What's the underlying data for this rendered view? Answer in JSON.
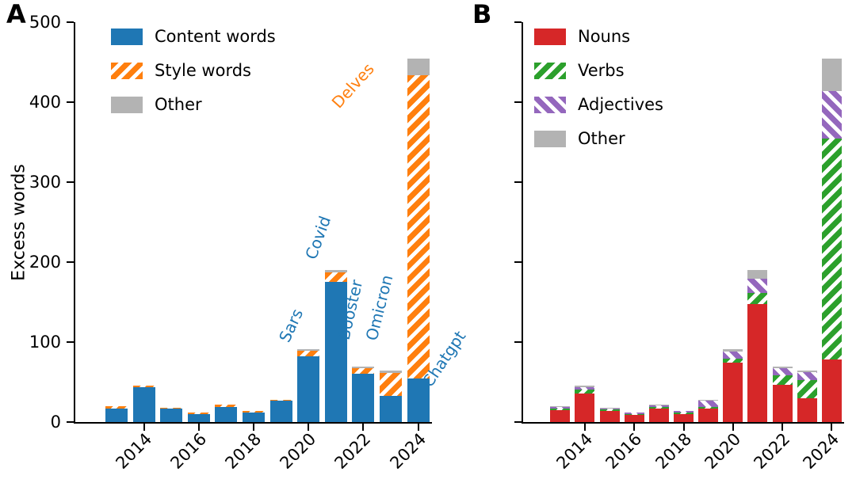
{
  "chart_data": [
    {
      "panel_label": "A",
      "type": "bar",
      "stacked": true,
      "ylabel": "Excess words",
      "ylim": [
        0,
        500
      ],
      "yticks": [
        0,
        100,
        200,
        300,
        400,
        500
      ],
      "show_ytick_labels": true,
      "xrange": [
        2012,
        2025
      ],
      "years": [
        2013,
        2014,
        2015,
        2016,
        2017,
        2018,
        2019,
        2020,
        2021,
        2022,
        2023,
        2024
      ],
      "xticks": [
        2014,
        2016,
        2018,
        2020,
        2022,
        2024
      ],
      "grid": false,
      "legend_position": "upper-left",
      "series": [
        {
          "name": "Content words",
          "color": "#1f77b4",
          "hatch": null,
          "values": [
            17,
            44,
            17,
            10,
            19,
            12,
            27,
            82,
            175,
            60,
            33,
            54
          ]
        },
        {
          "name": "Style words",
          "color": "#ff7f0e",
          "hatch": "/",
          "values": [
            3,
            2,
            1,
            2,
            3,
            2,
            1,
            7,
            12,
            7,
            28,
            380
          ]
        },
        {
          "name": "Other",
          "color": "#b3b3b3",
          "hatch": null,
          "values": [
            0,
            0,
            0,
            0,
            0,
            0,
            0,
            2,
            3,
            2,
            3,
            20
          ]
        }
      ],
      "annotations": [
        {
          "text": "Sars",
          "year": 2019.35,
          "value": 97,
          "color": "#1f77b4",
          "rotation": -65
        },
        {
          "text": "Covid",
          "year": 2020.35,
          "value": 201,
          "color": "#1f77b4",
          "rotation": -70
        },
        {
          "text": "Booster",
          "year": 2021.55,
          "value": 101,
          "color": "#1f77b4",
          "rotation": -77
        },
        {
          "text": "Omicron",
          "year": 2022.57,
          "value": 100,
          "color": "#1f77b4",
          "rotation": -76
        },
        {
          "text": "Delves",
          "year": 2021.18,
          "value": 389,
          "color": "#ff7f0e",
          "rotation": -48
        },
        {
          "text": "Chatgpt",
          "year": 2024.53,
          "value": 41,
          "color": "#1f77b4",
          "rotation": -56
        }
      ]
    },
    {
      "panel_label": "B",
      "type": "bar",
      "stacked": true,
      "ylabel": "",
      "ylim": [
        0,
        500
      ],
      "yticks": [
        0,
        100,
        200,
        300,
        400,
        500
      ],
      "show_ytick_labels": false,
      "xrange": [
        2012,
        2025
      ],
      "years": [
        2013,
        2014,
        2015,
        2016,
        2017,
        2018,
        2019,
        2020,
        2021,
        2022,
        2023,
        2024
      ],
      "xticks": [
        2014,
        2016,
        2018,
        2020,
        2022,
        2024
      ],
      "grid": false,
      "legend_position": "upper-left",
      "series": [
        {
          "name": "Nouns",
          "color": "#d62728",
          "hatch": null,
          "values": [
            15,
            36,
            14,
            9,
            17,
            10,
            17,
            74,
            148,
            47,
            30,
            78
          ]
        },
        {
          "name": "Verbs",
          "color": "#2ca02c",
          "hatch": "/",
          "values": [
            2,
            5,
            2,
            1,
            2,
            2,
            2,
            5,
            13,
            11,
            22,
            276
          ]
        },
        {
          "name": "Adjectives",
          "color": "#9467bd",
          "hatch": "\\",
          "values": [
            2,
            3,
            1,
            2,
            2,
            2,
            8,
            9,
            18,
            9,
            10,
            60
          ]
        },
        {
          "name": "Other",
          "color": "#b3b3b3",
          "hatch": null,
          "values": [
            1,
            2,
            1,
            0,
            1,
            0,
            1,
            3,
            11,
            2,
            2,
            40
          ]
        }
      ],
      "annotations": []
    }
  ]
}
